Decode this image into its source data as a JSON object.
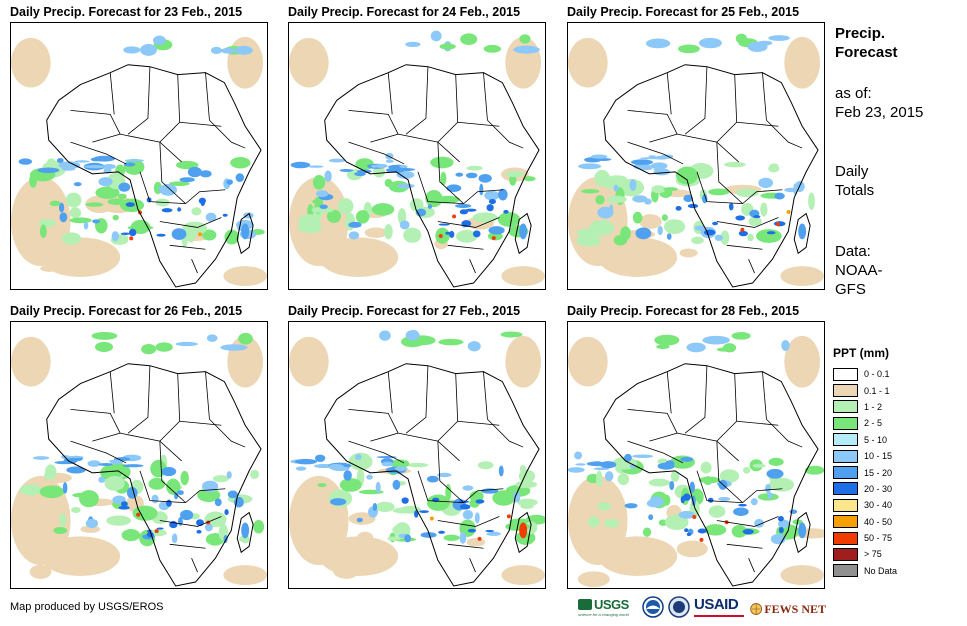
{
  "panels": [
    {
      "title": "Daily Precip. Forecast for 23 Feb., 2015"
    },
    {
      "title": "Daily Precip. Forecast for 24 Feb., 2015"
    },
    {
      "title": "Daily Precip. Forecast for 25 Feb., 2015"
    },
    {
      "title": "Daily Precip. Forecast for 26 Feb., 2015"
    },
    {
      "title": "Daily Precip. Forecast for 27 Feb., 2015"
    },
    {
      "title": "Daily Precip. Forecast for 28 Feb., 2015"
    }
  ],
  "sidebar": {
    "heading1": "Precip.",
    "heading2": "Forecast",
    "asof_label": "as of:",
    "asof_date": "Feb 23, 2015",
    "totals1": "Daily",
    "totals2": "Totals",
    "data1": "Data:",
    "data2": "NOAA-",
    "data3": "GFS"
  },
  "legend": {
    "title": "PPT (mm)",
    "items": [
      {
        "label": "0 - 0.1",
        "color": "#ffffff"
      },
      {
        "label": "0.1 - 1",
        "color": "#ecd6b4"
      },
      {
        "label": "1 - 2",
        "color": "#b4f0b4"
      },
      {
        "label": "2 - 5",
        "color": "#78e678"
      },
      {
        "label": "5 - 10",
        "color": "#b4ecf8"
      },
      {
        "label": "10 - 15",
        "color": "#8cc8f8"
      },
      {
        "label": "15 - 20",
        "color": "#50a0f0"
      },
      {
        "label": "20 - 30",
        "color": "#1e6ee6"
      },
      {
        "label": "30 - 40",
        "color": "#fae68c"
      },
      {
        "label": "40 - 50",
        "color": "#f5a000"
      },
      {
        "label": "50 - 75",
        "color": "#f03c00"
      },
      {
        "label": "> 75",
        "color": "#a01e1e"
      },
      {
        "label": "No Data",
        "color": "#909090"
      }
    ]
  },
  "footer": {
    "credit": "Map produced by USGS/EROS"
  },
  "logos": {
    "usgs": "USGS",
    "usgs_tag": "science for a changing world",
    "usaid": "USAID",
    "fews": "FEWS NET"
  }
}
